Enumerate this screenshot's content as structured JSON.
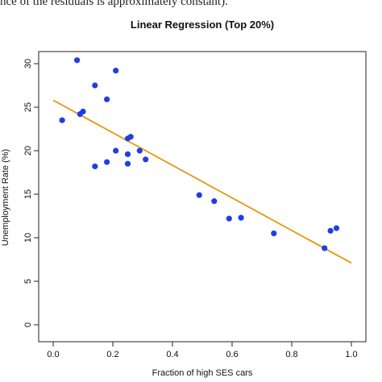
{
  "caption_fragment": "nce of the residuals is approximately constant).",
  "chart_data": {
    "type": "scatter",
    "title": "Linear Regression (Top 20%)",
    "xlabel": "Fraction of high SES cars",
    "ylabel": "Unemployment Rate (%)",
    "xlim": [
      0.0,
      1.0
    ],
    "ylim": [
      0,
      30
    ],
    "xticks": [
      "0.0",
      "0.2",
      "0.4",
      "0.6",
      "0.8",
      "1.0"
    ],
    "yticks": [
      "0",
      "5",
      "10",
      "15",
      "20",
      "25",
      "30"
    ],
    "grid": false,
    "point_color": "#1f3fe0",
    "line_color": "#e8960e",
    "points": [
      {
        "x": 0.03,
        "y": 23.5
      },
      {
        "x": 0.08,
        "y": 30.4
      },
      {
        "x": 0.09,
        "y": 24.2
      },
      {
        "x": 0.1,
        "y": 24.5
      },
      {
        "x": 0.14,
        "y": 27.5
      },
      {
        "x": 0.14,
        "y": 18.2
      },
      {
        "x": 0.18,
        "y": 25.9
      },
      {
        "x": 0.18,
        "y": 18.7
      },
      {
        "x": 0.21,
        "y": 29.2
      },
      {
        "x": 0.21,
        "y": 20.0
      },
      {
        "x": 0.25,
        "y": 21.4
      },
      {
        "x": 0.25,
        "y": 19.6
      },
      {
        "x": 0.25,
        "y": 18.5
      },
      {
        "x": 0.26,
        "y": 21.6
      },
      {
        "x": 0.29,
        "y": 20.0
      },
      {
        "x": 0.31,
        "y": 19.0
      },
      {
        "x": 0.49,
        "y": 14.9
      },
      {
        "x": 0.54,
        "y": 14.2
      },
      {
        "x": 0.59,
        "y": 12.2
      },
      {
        "x": 0.63,
        "y": 12.3
      },
      {
        "x": 0.74,
        "y": 10.5
      },
      {
        "x": 0.91,
        "y": 8.8
      },
      {
        "x": 0.93,
        "y": 10.8
      },
      {
        "x": 0.95,
        "y": 11.1
      }
    ],
    "regression_line": {
      "x": [
        0.0,
        1.0
      ],
      "y": [
        25.8,
        7.1
      ]
    }
  }
}
